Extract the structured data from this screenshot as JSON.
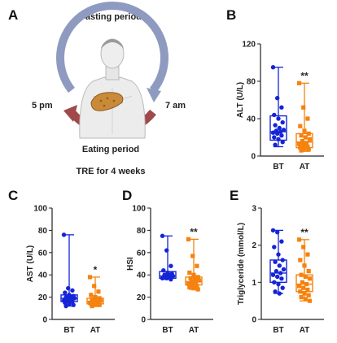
{
  "panel_a": {
    "label": "A",
    "top_text": "Fasting period",
    "left_text": "5 pm",
    "right_text": "7 am",
    "bottom_text": "Eating period",
    "footer_text": "TRE for 4 weeks",
    "colors": {
      "fasting_arc": "#8e9ac0",
      "eating_arc": "#a0494b",
      "liver": "#c98a3a"
    },
    "icon": "human-torso-with-liver-icon"
  },
  "colors": {
    "BT": "#1424d6",
    "AT": "#f5820f"
  },
  "chart_data": [
    {
      "id": "B",
      "label": "B",
      "type": "box",
      "ylabel": "ALT (U/L)",
      "ylim": [
        0,
        120
      ],
      "yticks": [
        "0",
        "40",
        "80",
        "120"
      ],
      "categories": [
        "BT",
        "AT"
      ],
      "series": [
        {
          "name": "BT",
          "min": 10,
          "q1": 17,
          "median": 26,
          "q3": 43,
          "max": 95,
          "points": [
            95,
            62,
            52,
            44,
            40,
            36,
            33,
            30,
            28,
            27,
            26,
            25,
            24,
            22,
            20,
            18,
            15,
            12
          ]
        },
        {
          "name": "AT",
          "min": 5,
          "q1": 9,
          "median": 15,
          "q3": 24,
          "max": 78,
          "points": [
            78,
            52,
            40,
            32,
            27,
            24,
            22,
            20,
            18,
            16,
            14,
            13,
            12,
            10,
            9,
            8,
            7,
            6
          ]
        }
      ],
      "significance": "**"
    },
    {
      "id": "C",
      "label": "C",
      "type": "box",
      "ylabel": "AST (U/L)",
      "ylim": [
        0,
        100
      ],
      "yticks": [
        "0",
        "20",
        "40",
        "60",
        "80",
        "100"
      ],
      "categories": [
        "BT",
        "AT"
      ],
      "series": [
        {
          "name": "BT",
          "min": 12,
          "q1": 16,
          "median": 19,
          "q3": 22,
          "max": 76,
          "points": [
            76,
            28,
            26,
            24,
            22,
            21,
            20,
            20,
            19,
            18,
            18,
            17,
            16,
            16,
            15,
            14,
            13,
            12
          ]
        },
        {
          "name": "AT",
          "min": 12,
          "q1": 14,
          "median": 16,
          "q3": 19,
          "max": 38,
          "points": [
            38,
            30,
            25,
            22,
            20,
            19,
            18,
            17,
            17,
            16,
            16,
            15,
            15,
            14,
            14,
            13,
            13,
            12
          ]
        }
      ],
      "significance": "*"
    },
    {
      "id": "D",
      "label": "D",
      "type": "box",
      "ylabel": "HSI",
      "ylim": [
        0,
        100
      ],
      "yticks": [
        "0",
        "20",
        "40",
        "60",
        "80",
        "100"
      ],
      "categories": [
        "BT",
        "AT"
      ],
      "series": [
        {
          "name": "BT",
          "min": 36,
          "q1": 37,
          "median": 39,
          "q3": 43,
          "max": 75,
          "points": [
            75,
            62,
            48,
            44,
            42,
            41,
            40,
            40,
            39,
            38,
            38,
            37,
            37,
            36
          ]
        },
        {
          "name": "AT",
          "min": 27,
          "q1": 31,
          "median": 34,
          "q3": 38,
          "max": 72,
          "points": [
            72,
            57,
            48,
            42,
            40,
            38,
            37,
            36,
            35,
            34,
            33,
            32,
            31,
            30,
            29,
            28,
            27
          ]
        }
      ],
      "significance": "**"
    },
    {
      "id": "E",
      "label": "E",
      "type": "box",
      "ylabel": "Triglyceride (mmol/L)",
      "ylim": [
        0,
        3
      ],
      "yticks": [
        "0",
        "1",
        "2",
        "3"
      ],
      "categories": [
        "BT",
        "AT"
      ],
      "series": [
        {
          "name": "BT",
          "min": 0.7,
          "q1": 1.0,
          "median": 1.25,
          "q3": 1.6,
          "max": 2.4,
          "points": [
            2.4,
            2.35,
            2.1,
            1.95,
            1.75,
            1.6,
            1.55,
            1.45,
            1.35,
            1.3,
            1.25,
            1.2,
            1.15,
            1.1,
            1.0,
            0.95,
            0.85,
            0.75,
            0.7
          ]
        },
        {
          "name": "AT",
          "min": 0.5,
          "q1": 0.75,
          "median": 0.95,
          "q3": 1.2,
          "max": 2.15,
          "points": [
            2.15,
            1.95,
            1.75,
            1.6,
            1.45,
            1.3,
            1.2,
            1.15,
            1.1,
            1.0,
            0.95,
            0.9,
            0.85,
            0.8,
            0.75,
            0.7,
            0.65,
            0.6,
            0.55,
            0.5
          ]
        }
      ],
      "significance": "**"
    }
  ]
}
